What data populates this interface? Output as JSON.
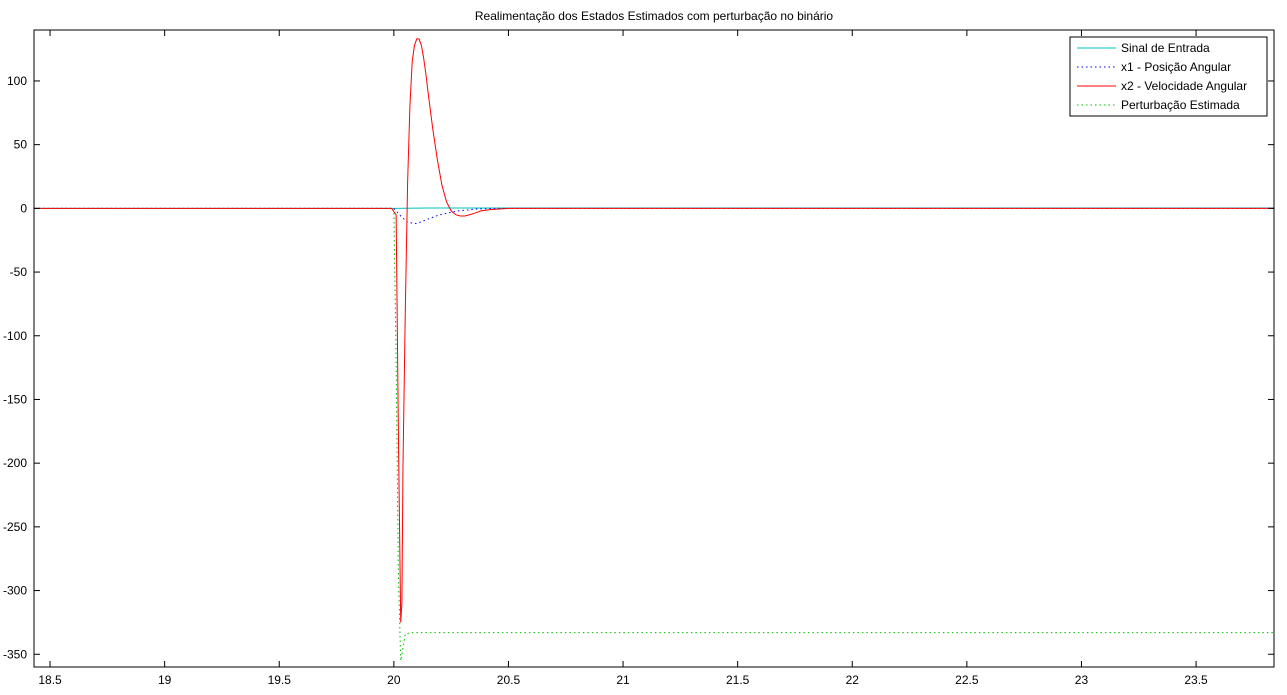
{
  "chart_data": {
    "type": "line",
    "title": "Realimentação dos Estados Estimados com perturbação no binário",
    "xlabel": "",
    "ylabel": "",
    "xlim": [
      18.43,
      23.84
    ],
    "ylim": [
      -360,
      140
    ],
    "xticks": [
      18.5,
      19,
      19.5,
      20,
      20.5,
      21,
      21.5,
      22,
      22.5,
      23,
      23.5
    ],
    "yticks": [
      100,
      50,
      0,
      -50,
      -100,
      -150,
      -200,
      -250,
      -300,
      -350
    ],
    "grid": false,
    "legend_position": "top-right",
    "series": [
      {
        "name": "Sinal de Entrada",
        "color": "#00bfbf",
        "dash": "solid",
        "x": [
          18.43,
          20.0,
          20.15,
          23.84
        ],
        "y": [
          0,
          0,
          0.3,
          0.3
        ]
      },
      {
        "name": "x1 - Posição Angular",
        "color": "#0000ff",
        "dash": "dotted",
        "x": [
          18.43,
          20.0,
          20.03,
          20.06,
          20.1,
          20.14,
          20.2,
          20.28,
          20.36,
          20.45,
          20.6,
          23.84
        ],
        "y": [
          0,
          0,
          -6,
          -11,
          -12,
          -9,
          -5,
          -2,
          -0.5,
          0,
          0,
          0
        ]
      },
      {
        "name": "x2 - Velocidade Angular",
        "color": "#ff0000",
        "dash": "solid",
        "x": [
          18.43,
          19.99,
          20.01,
          20.02,
          20.03,
          20.035,
          20.04,
          20.05,
          20.06,
          20.07,
          20.08,
          20.09,
          20.1,
          20.11,
          20.12,
          20.13,
          20.14,
          20.15,
          20.17,
          20.19,
          20.21,
          20.23,
          20.25,
          20.27,
          20.29,
          20.31,
          20.33,
          20.35,
          20.38,
          20.42,
          20.46,
          20.5,
          23.84
        ],
        "y": [
          0,
          0,
          -5,
          -180,
          -325,
          -310,
          -200,
          -80,
          20,
          80,
          115,
          128,
          133,
          133,
          128,
          118,
          105,
          90,
          62,
          38,
          18,
          5,
          -2,
          -5,
          -6,
          -6,
          -5,
          -4,
          -2,
          -1,
          -0.5,
          0,
          0
        ]
      },
      {
        "name": "Perturbação Estimada",
        "color": "#00bf00",
        "dash": "dotted",
        "x": [
          18.43,
          20.0,
          20.01,
          20.02,
          20.03,
          20.04,
          20.05,
          20.08,
          23.84
        ],
        "y": [
          0,
          0,
          -120,
          -290,
          -355,
          -345,
          -334,
          -333,
          -333
        ]
      }
    ]
  }
}
